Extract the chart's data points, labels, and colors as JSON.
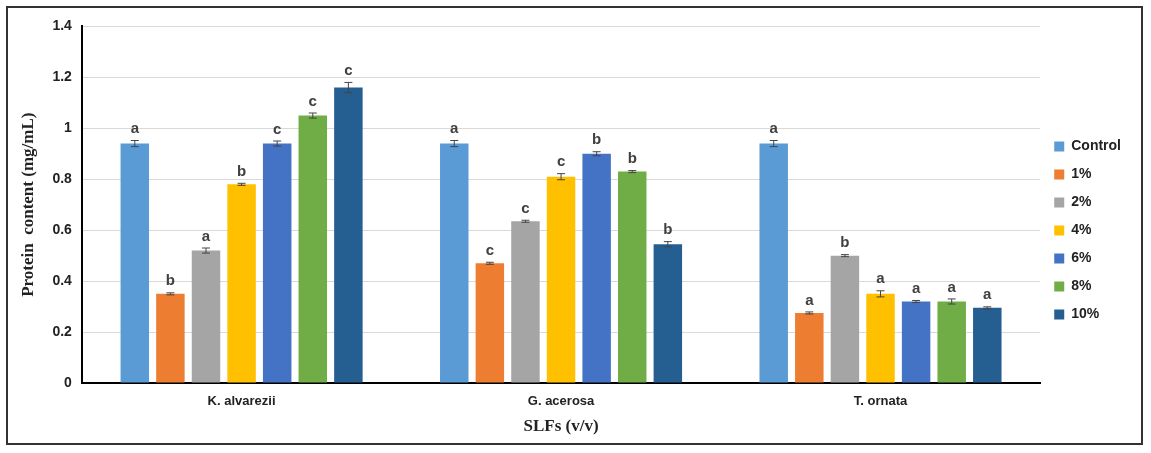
{
  "chart_data": {
    "type": "bar",
    "xlabel": "SLFs (v/v)",
    "ylabel": "Protein  content (mg/mL)",
    "categories": [
      "K. alvarezii",
      "G. acerosa",
      "T. ornata"
    ],
    "ylim": [
      0,
      1.4
    ],
    "yticks": [
      0,
      0.2,
      0.4,
      0.6,
      0.8,
      1,
      1.2,
      1.4
    ],
    "grid": "y",
    "legend": "right",
    "series": [
      {
        "name": "Control",
        "color": "#5b9bd5",
        "values": [
          0.94,
          0.94,
          0.94
        ],
        "errors": [
          0.012,
          0.012,
          0.012
        ],
        "value_labels": [
          "a",
          "a",
          "a"
        ]
      },
      {
        "name": "1%",
        "color": "#ed7d31",
        "values": [
          0.35,
          0.47,
          0.275
        ],
        "errors": [
          0.004,
          0.004,
          0.004
        ],
        "value_labels": [
          "b",
          "c",
          "a"
        ]
      },
      {
        "name": "2%",
        "color": "#a5a5a5",
        "values": [
          0.52,
          0.635,
          0.5
        ],
        "errors": [
          0.01,
          0.004,
          0.004
        ],
        "value_labels": [
          "a",
          "c",
          "b"
        ]
      },
      {
        "name": "4%",
        "color": "#ffc000",
        "values": [
          0.78,
          0.81,
          0.35
        ],
        "errors": [
          0.004,
          0.012,
          0.012
        ],
        "value_labels": [
          "b",
          "c",
          "a"
        ]
      },
      {
        "name": "6%",
        "color": "#4472c4",
        "values": [
          0.94,
          0.9,
          0.32
        ],
        "errors": [
          0.01,
          0.008,
          0.004
        ],
        "value_labels": [
          "c",
          "b",
          "a"
        ]
      },
      {
        "name": "8%",
        "color": "#70ad47",
        "values": [
          1.05,
          0.83,
          0.32
        ],
        "errors": [
          0.01,
          0.004,
          0.01
        ],
        "value_labels": [
          "c",
          "b",
          "a"
        ]
      },
      {
        "name": "10%",
        "color": "#255e91",
        "values": [
          1.16,
          0.545,
          0.295
        ],
        "errors": [
          0.02,
          0.01,
          0.004
        ],
        "value_labels": [
          "c",
          "b",
          "a"
        ]
      }
    ]
  }
}
